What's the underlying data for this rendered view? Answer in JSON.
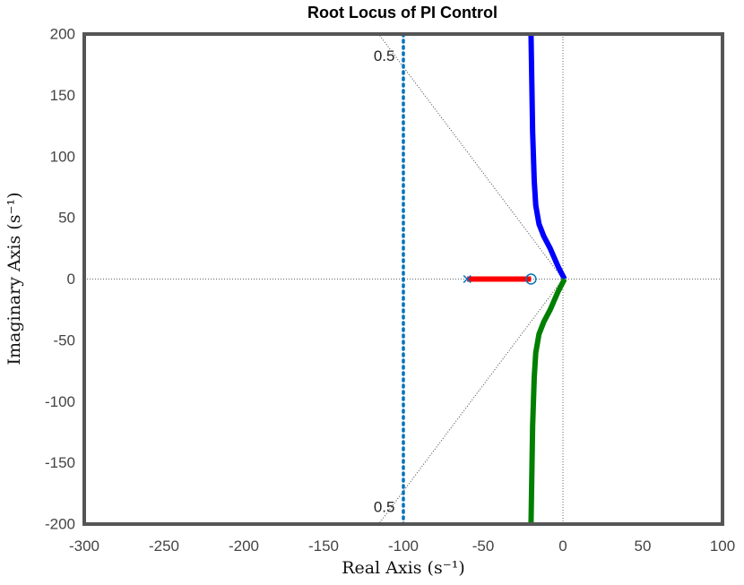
{
  "chart_data": {
    "type": "line",
    "title": "Root Locus of PI Control",
    "xlabel": "Real Axis (s⁻¹)",
    "ylabel": "Imaginary Axis (s⁻¹)",
    "xlim": [
      -300,
      100
    ],
    "ylim": [
      -200,
      200
    ],
    "xticks": [
      -300,
      -250,
      -200,
      -150,
      -100,
      -50,
      0,
      50,
      100
    ],
    "yticks": [
      -200,
      -150,
      -100,
      -50,
      0,
      50,
      100,
      150,
      200
    ],
    "xtick_labels": [
      "-300",
      "-250",
      "-200",
      "-150",
      "-100",
      "-50",
      "0",
      "50",
      "100"
    ],
    "ytick_labels": [
      "-200",
      "-150",
      "-100",
      "-50",
      "0",
      "50",
      "100",
      "150",
      "200"
    ],
    "grid": false,
    "colors": {
      "upper_branch": "#0000ff",
      "lower_branch": "#007f00",
      "real_branch": "#ff0000",
      "boundary": "#0072bd",
      "marker": "#0072bd",
      "frame": "#555555"
    },
    "series": [
      {
        "color": "#0000ff",
        "x": [
          1,
          -3,
          -8,
          -12,
          -15,
          -17,
          -18,
          -19,
          -19.5,
          -20
        ],
        "y": [
          0,
          10,
          25,
          35,
          45,
          60,
          80,
          120,
          160,
          200
        ]
      },
      {
        "color": "#007f00",
        "x": [
          1,
          -3,
          -8,
          -12,
          -15,
          -17,
          -18,
          -19,
          -19.5,
          -20
        ],
        "y": [
          0,
          -10,
          -25,
          -35,
          -45,
          -60,
          -80,
          -120,
          -160,
          -200
        ]
      },
      {
        "color": "#ff0000",
        "x": [
          -60,
          -20
        ],
        "y": [
          0,
          0
        ]
      }
    ],
    "pole": {
      "x": -60,
      "y": 0
    },
    "zero": {
      "x": -20,
      "y": 0
    },
    "boundary_line": {
      "x": -100
    },
    "damping_lines": [
      {
        "x": [
          0,
          -115.5
        ],
        "y": [
          0,
          200
        ]
      },
      {
        "x": [
          0,
          -115.5
        ],
        "y": [
          0,
          -200
        ]
      }
    ],
    "annotations": [
      {
        "text": "0.5",
        "x": -112,
        "y": 182
      },
      {
        "text": "0.5",
        "x": -112,
        "y": -186
      }
    ]
  }
}
